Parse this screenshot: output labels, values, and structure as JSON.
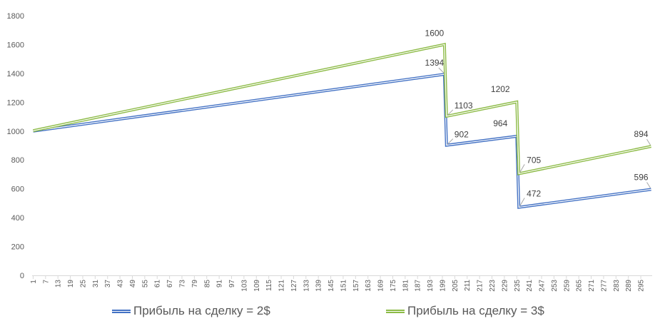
{
  "chart_data": {
    "type": "line",
    "x": {
      "start": 1,
      "end": 300,
      "tick_start": 1,
      "tick_step": 6,
      "first_extra_tick": 7
    },
    "ylim": [
      0,
      1800
    ],
    "yticks": [
      0,
      200,
      400,
      600,
      800,
      1000,
      1200,
      1400,
      1600,
      1800
    ],
    "grid": false,
    "legend": "bottom",
    "series": [
      {
        "name": "Прибыль на сделку = 2$",
        "color": "#4472C4",
        "points": [
          [
            1,
            1000
          ],
          [
            200,
            1394
          ],
          [
            201,
            902
          ],
          [
            235,
            964
          ],
          [
            236,
            472
          ],
          [
            300,
            596
          ]
        ],
        "labels": [
          {
            "x": 200,
            "y": 1394,
            "text": "1394"
          },
          {
            "x": 201,
            "y": 902,
            "text": "902"
          },
          {
            "x": 235,
            "y": 964,
            "text": "964"
          },
          {
            "x": 236,
            "y": 472,
            "text": "472"
          },
          {
            "x": 300,
            "y": 596,
            "text": "596"
          }
        ]
      },
      {
        "name": "Прибыль на сделку = 3$",
        "color": "#8DBB47",
        "points": [
          [
            1,
            1003
          ],
          [
            200,
            1600
          ],
          [
            201,
            1103
          ],
          [
            235,
            1202
          ],
          [
            236,
            705
          ],
          [
            300,
            894
          ]
        ],
        "labels": [
          {
            "x": 200,
            "y": 1600,
            "text": "1600"
          },
          {
            "x": 201,
            "y": 1103,
            "text": "1103"
          },
          {
            "x": 235,
            "y": 1202,
            "text": "1202"
          },
          {
            "x": 236,
            "y": 705,
            "text": "705"
          },
          {
            "x": 300,
            "y": 894,
            "text": "894"
          }
        ]
      }
    ]
  }
}
